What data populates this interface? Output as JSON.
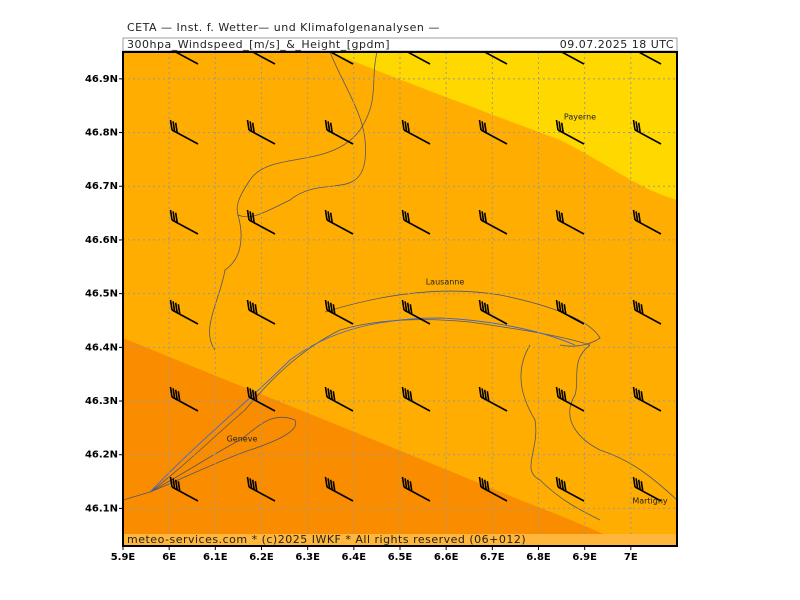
{
  "header": "CETA — Inst. f. Wetter— und Klimafolgenanalysen —",
  "title": "300hpa_Windspeed_[m/s]_&_Height_[gpdm]",
  "datetime": "09.07.2025 18 UTC",
  "footer": "meteo-services.com * (c)2025 IWKF * All rights reserved (06+012)",
  "map": {
    "xlim": [
      5.9,
      7.1
    ],
    "ylim": [
      46.03,
      46.95
    ],
    "xticks": [
      {
        "value": 5.9,
        "label": "5.9E"
      },
      {
        "value": 6.0,
        "label": "6E"
      },
      {
        "value": 6.1,
        "label": "6.1E"
      },
      {
        "value": 6.2,
        "label": "6.2E"
      },
      {
        "value": 6.3,
        "label": "6.3E"
      },
      {
        "value": 6.4,
        "label": "6.4E"
      },
      {
        "value": 6.5,
        "label": "6.5E"
      },
      {
        "value": 6.6,
        "label": "6.6E"
      },
      {
        "value": 6.7,
        "label": "6.7E"
      },
      {
        "value": 6.8,
        "label": "6.8E"
      },
      {
        "value": 6.9,
        "label": "6.9E"
      },
      {
        "value": 7.0,
        "label": "7E"
      }
    ],
    "yticks": [
      {
        "value": 46.1,
        "label": "46.1N"
      },
      {
        "value": 46.2,
        "label": "46.2N"
      },
      {
        "value": 46.3,
        "label": "46.3N"
      },
      {
        "value": 46.4,
        "label": "46.4N"
      },
      {
        "value": 46.5,
        "label": "46.5N"
      },
      {
        "value": 46.6,
        "label": "46.6N"
      },
      {
        "value": 46.7,
        "label": "46.7N"
      },
      {
        "value": 46.8,
        "label": "46.8N"
      },
      {
        "value": 46.9,
        "label": "46.9N"
      }
    ],
    "places": [
      "Payerne",
      "Lausanne",
      "Geneve",
      "Martigny"
    ]
  }
}
